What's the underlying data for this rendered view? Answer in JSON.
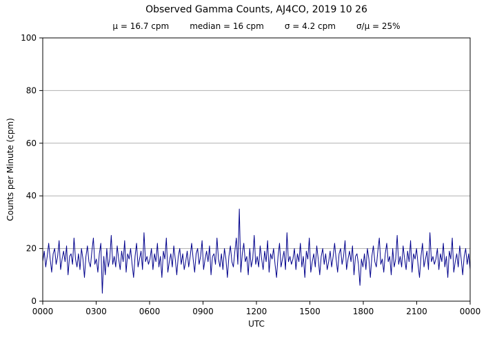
{
  "colors": {
    "line": "#00008b",
    "grid": "#b0b0b0",
    "axis": "#000000",
    "background": "#ffffff"
  },
  "chart_data": {
    "type": "line",
    "title": "Observed Gamma Counts, AJ4CO, 2019 10 26",
    "stats": [
      "μ = 16.7 cpm",
      "median = 16 cpm",
      "σ = 4.2 cpm",
      "σ/μ = 25%"
    ],
    "xlabel": "UTC",
    "ylabel": "Counts per Minute (cpm)",
    "x_tick_labels": [
      "0000",
      "0300",
      "0600",
      "0900",
      "1200",
      "1500",
      "1800",
      "2100",
      "0000"
    ],
    "y_ticks": [
      0,
      20,
      40,
      60,
      80,
      100
    ],
    "ylim": [
      0,
      100
    ],
    "x_minutes_range": [
      0,
      1440
    ],
    "grid": "horizontal",
    "line_color": "#00008b",
    "annotations": {
      "mean_cpm": 16.7,
      "median_cpm": 16,
      "sigma_cpm": 4.2,
      "sigma_over_mean_pct": 25,
      "peak": {
        "utc_approx": "1100",
        "value_cpm": 35
      },
      "minimum": {
        "utc_approx": "0320",
        "value_cpm": 3
      }
    },
    "series": [
      {
        "name": "gamma_counts_cpm",
        "sample_interval_min": 5,
        "values": [
          15,
          19,
          13,
          17,
          22,
          16,
          11,
          18,
          20,
          14,
          17,
          23,
          12,
          16,
          19,
          15,
          21,
          10,
          17,
          18,
          14,
          24,
          16,
          13,
          18,
          12,
          20,
          16,
          9,
          17,
          21,
          15,
          13,
          19,
          24,
          14,
          16,
          11,
          18,
          22,
          3,
          17,
          10,
          20,
          13,
          16,
          25,
          14,
          17,
          13,
          21,
          16,
          12,
          19,
          15,
          23,
          11,
          18,
          16,
          20,
          14,
          9,
          17,
          22,
          13,
          16,
          19,
          12,
          26,
          15,
          17,
          14,
          16,
          20,
          12,
          18,
          15,
          22,
          13,
          17,
          9,
          19,
          16,
          24,
          11,
          15,
          18,
          13,
          21,
          16,
          10,
          17,
          20,
          14,
          18,
          12,
          15,
          19,
          13,
          17,
          22,
          16,
          11,
          18,
          20,
          14,
          17,
          23,
          12,
          16,
          19,
          15,
          21,
          10,
          17,
          18,
          14,
          24,
          16,
          13,
          18,
          12,
          20,
          16,
          9,
          17,
          21,
          15,
          13,
          19,
          24,
          14,
          35,
          11,
          18,
          22,
          15,
          17,
          10,
          20,
          13,
          16,
          25,
          14,
          17,
          13,
          21,
          16,
          12,
          19,
          15,
          23,
          11,
          18,
          16,
          20,
          14,
          9,
          17,
          22,
          13,
          16,
          19,
          12,
          26,
          15,
          17,
          14,
          16,
          20,
          12,
          18,
          15,
          22,
          13,
          17,
          9,
          19,
          16,
          24,
          11,
          15,
          18,
          13,
          21,
          16,
          10,
          17,
          20,
          14,
          18,
          12,
          15,
          19,
          13,
          17,
          22,
          16,
          11,
          18,
          20,
          14,
          17,
          23,
          12,
          16,
          19,
          15,
          21,
          10,
          17,
          18,
          14,
          6,
          16,
          13,
          18,
          12,
          20,
          16,
          9,
          17,
          21,
          15,
          13,
          19,
          24,
          14,
          16,
          11,
          18,
          22,
          15,
          17,
          10,
          20,
          13,
          16,
          25,
          14,
          17,
          13,
          21,
          16,
          12,
          19,
          15,
          23,
          11,
          18,
          16,
          20,
          14,
          9,
          17,
          22,
          13,
          16,
          19,
          12,
          26,
          15,
          17,
          14,
          16,
          20,
          12,
          18,
          15,
          22,
          13,
          17,
          9,
          19,
          16,
          24,
          11,
          15,
          18,
          13,
          21,
          16,
          10,
          17,
          20,
          14,
          18,
          12
        ]
      }
    ]
  }
}
